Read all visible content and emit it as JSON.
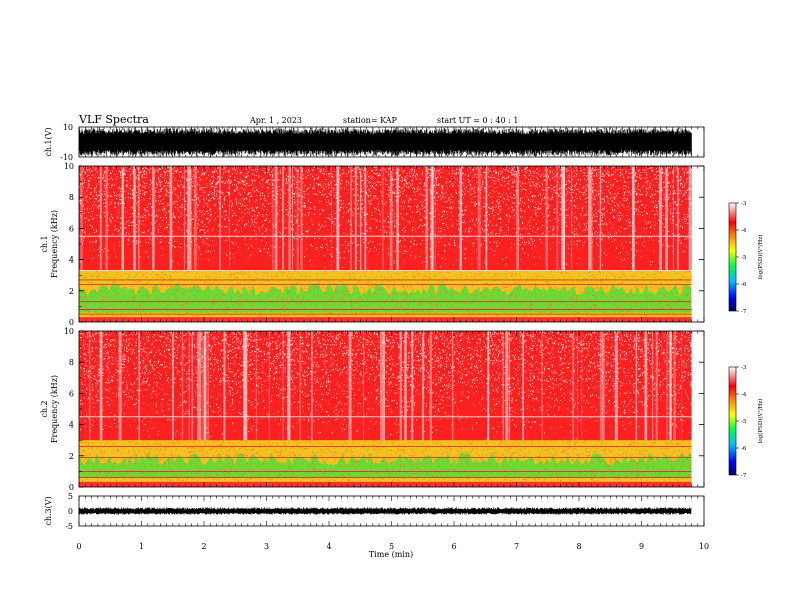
{
  "header": {
    "title": "VLF Spectra",
    "date": "Apr. 1 , 2023",
    "station": "station= KAP",
    "start": "start UT =  0 : 40 : 1"
  },
  "chart_data": [
    {
      "type": "line",
      "name": "ch1-waveform",
      "ylabel": "ch.1(V)",
      "ylim": [
        -10,
        10
      ],
      "ytick_labels": [
        "10",
        "-10"
      ],
      "xlim": [
        0,
        10
      ]
    },
    {
      "type": "heatmap",
      "name": "ch1-spectrogram",
      "ylabel_top": "ch.1",
      "ylabel": "Frequency (kHz)",
      "ylim": [
        0,
        10
      ],
      "yticks": [
        "0",
        "2",
        "4",
        "6",
        "8",
        "10"
      ],
      "xlim": [
        0,
        10
      ],
      "data_extent_min": 9.8,
      "colorbar": {
        "label": "log(PSD)(V²/Hz)",
        "range": [
          -7,
          -3
        ],
        "ticks": [
          "-3",
          "-4",
          "-5",
          "-6",
          "-7"
        ]
      }
    },
    {
      "type": "heatmap",
      "name": "ch2-spectrogram",
      "ylabel_top": "ch.2",
      "ylabel": "Frequency (kHz)",
      "ylim": [
        0,
        10
      ],
      "yticks": [
        "0",
        "2",
        "4",
        "6",
        "8",
        "10"
      ],
      "xlim": [
        0,
        10
      ],
      "data_extent_min": 9.8,
      "colorbar": {
        "label": "log(PSD)(V²/Hz)",
        "range": [
          -7,
          -3
        ],
        "ticks": [
          "-3",
          "-4",
          "-5",
          "-6",
          "-7"
        ]
      }
    },
    {
      "type": "line",
      "name": "ch3-waveform",
      "ylabel": "ch.3(V)",
      "ylim": [
        -5,
        5
      ],
      "ytick_labels": [
        "5",
        "0",
        "-5"
      ],
      "xlim": [
        0,
        10
      ]
    }
  ],
  "xaxis": {
    "label": "Time (min)",
    "ticks": [
      "0",
      "1",
      "2",
      "3",
      "4",
      "5",
      "6",
      "7",
      "8",
      "9",
      "10"
    ]
  },
  "colors": {
    "spectro_background": "#ff2020",
    "band_yellow": "#f0e020",
    "band_green": "#40e040",
    "waveform": "#000000"
  }
}
